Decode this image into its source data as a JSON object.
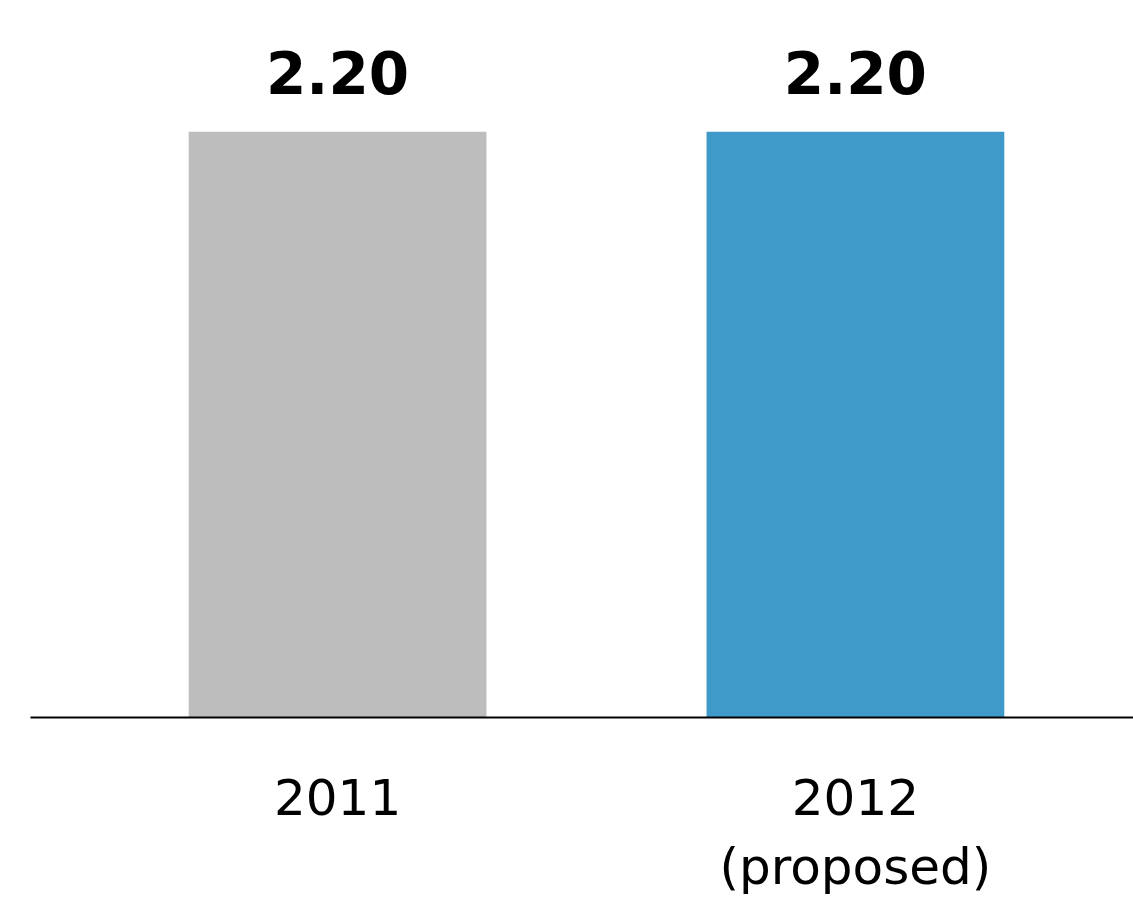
{
  "chart_data": {
    "type": "bar",
    "categories": [
      "2011",
      "2012\n(proposed)"
    ],
    "values": [
      2.2,
      2.2
    ],
    "colors": [
      "#bdbdbd",
      "#3f9ac9"
    ],
    "value_labels": [
      "2.20",
      "2.20"
    ],
    "grid": false,
    "tick_labels": "x"
  }
}
